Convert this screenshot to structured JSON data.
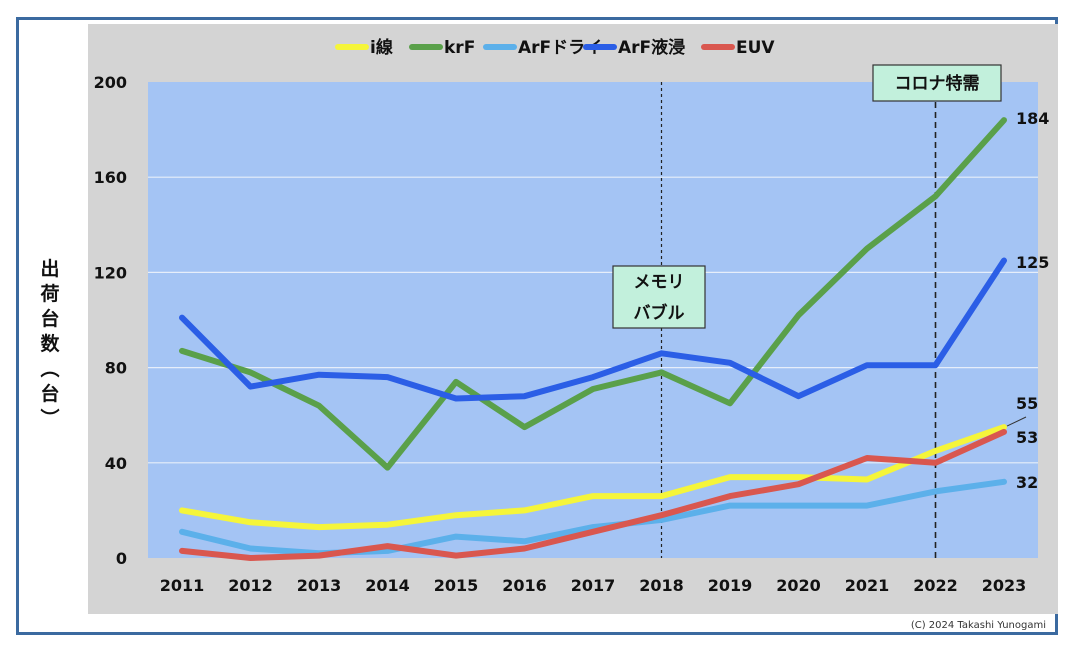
{
  "chart_data": {
    "type": "line",
    "title": "",
    "xlabel": "",
    "ylabel": "出荷台数(台)",
    "ylim": [
      0,
      200
    ],
    "yticks": [
      0,
      40,
      80,
      120,
      160,
      200
    ],
    "grid": true,
    "legend_position": "top",
    "categories": [
      "2011",
      "2012",
      "2013",
      "2014",
      "2015",
      "2016",
      "2017",
      "2018",
      "2019",
      "2020",
      "2021",
      "2022",
      "2023"
    ],
    "series": [
      {
        "name": "i線",
        "color": "#f5f53a",
        "values": [
          20,
          15,
          13,
          14,
          18,
          20,
          26,
          26,
          34,
          34,
          33,
          45,
          55
        ]
      },
      {
        "name": "krF",
        "color": "#5aa04a",
        "values": [
          87,
          78,
          64,
          38,
          74,
          55,
          71,
          78,
          65,
          102,
          130,
          152,
          184
        ]
      },
      {
        "name": "ArFドライ",
        "color": "#5cb0ea",
        "values": [
          11,
          4,
          2,
          3,
          9,
          7,
          13,
          16,
          22,
          22,
          22,
          28,
          32
        ]
      },
      {
        "name": "ArF液浸",
        "color": "#2b5ee6",
        "values": [
          101,
          72,
          77,
          76,
          67,
          68,
          76,
          86,
          82,
          68,
          81,
          81,
          125
        ]
      },
      {
        "name": "EUV",
        "color": "#d9574f",
        "values": [
          3,
          0,
          1,
          5,
          1,
          4,
          11,
          18,
          26,
          31,
          42,
          40,
          53
        ]
      }
    ],
    "end_labels": [
      "184",
      "125",
      "55",
      "53",
      "32"
    ],
    "annotations": [
      {
        "year": "2018",
        "lines": [
          "メモリ",
          "バブル"
        ]
      },
      {
        "year": "2022",
        "lines": [
          "コロナ特需"
        ]
      }
    ],
    "copyright": "(C) 2024 Takashi Yunogami"
  }
}
